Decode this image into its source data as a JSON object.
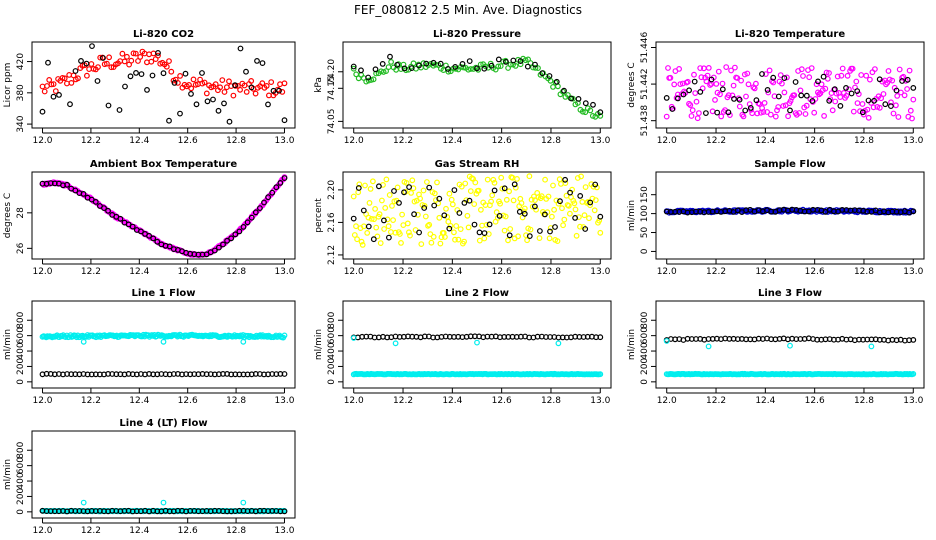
{
  "figure_title": "FEF_080812  2.5 Min. Ave. Diagnostics",
  "colors": {
    "black": "#000000",
    "red": "#ff0000",
    "green": "#22bb22",
    "magenta": "#ff00ff",
    "yellow": "#ffff00",
    "blue": "#0000cc",
    "cyan": "#00eeee"
  },
  "chart_data": [
    {
      "id": "co2",
      "type": "scatter",
      "title": "Li-820 CO2",
      "ylabel": "Licor ppm",
      "xlim": [
        12.0,
        13.0
      ],
      "ylim": [
        335,
        445
      ],
      "xticks": [
        "12.0",
        "12.2",
        "12.4",
        "12.6",
        "12.8",
        "13.0"
      ],
      "yticks": [
        340,
        380,
        420
      ],
      "series": [
        {
          "name": "line-a",
          "color": "red",
          "x": [
            12.0,
            12.05,
            12.1,
            12.15,
            12.2,
            12.25,
            12.3,
            12.35,
            12.4,
            12.45,
            12.5,
            12.55,
            12.6,
            12.7,
            12.8,
            12.9,
            13.0
          ],
          "y": [
            385,
            388,
            395,
            405,
            412,
            418,
            420,
            421,
            425,
            428,
            420,
            402,
            392,
            388,
            386,
            385,
            385
          ],
          "spread": 10,
          "n": 110
        },
        {
          "name": "line-b",
          "color": "black",
          "x": [
            12.0,
            12.25,
            12.5,
            12.75,
            13.0
          ],
          "y": [
            385,
            385,
            385,
            385,
            385
          ],
          "spread": 55,
          "n": 45
        }
      ]
    },
    {
      "id": "pressure",
      "type": "scatter",
      "title": "Li-820 Pressure",
      "ylabel": "kPa",
      "xlim": [
        12.0,
        13.0
      ],
      "ylim": [
        74.03,
        74.29
      ],
      "xticks": [
        "12.0",
        "12.2",
        "12.4",
        "12.6",
        "12.8",
        "13.0"
      ],
      "yticks": [
        "74.05",
        "74.15",
        "74.20"
      ],
      "series": [
        {
          "name": "line-a",
          "color": "green",
          "x": [
            12.0,
            12.05,
            12.1,
            12.15,
            12.2,
            12.3,
            12.4,
            12.5,
            12.6,
            12.7,
            12.8,
            12.9,
            13.0
          ],
          "y": [
            74.2,
            74.18,
            74.19,
            74.22,
            74.21,
            74.22,
            74.21,
            74.21,
            74.22,
            74.23,
            74.17,
            74.1,
            74.06
          ],
          "spread": 0.012,
          "n": 100
        },
        {
          "name": "line-b",
          "color": "black",
          "x": [
            12.0,
            12.05,
            12.1,
            12.15,
            12.2,
            12.3,
            12.4,
            12.5,
            12.6,
            12.7,
            12.8,
            12.9,
            13.0
          ],
          "y": [
            74.21,
            74.19,
            74.2,
            74.24,
            74.22,
            74.23,
            74.22,
            74.22,
            74.23,
            74.23,
            74.18,
            74.12,
            74.08
          ],
          "spread": 0.015,
          "n": 35
        }
      ]
    },
    {
      "id": "licor-temp",
      "type": "scatter",
      "title": "Li-820 Temperature",
      "ylabel": "degrees C",
      "xlim": [
        12.0,
        13.0
      ],
      "ylim": [
        51.4372,
        51.4466
      ],
      "xticks": [
        "12.0",
        "12.2",
        "12.4",
        "12.6",
        "12.8",
        "13.0"
      ],
      "yticks": [
        "51.438",
        "51.442",
        "51.446"
      ],
      "series": [
        {
          "name": "line-a",
          "color": "magenta",
          "x": [
            12.0,
            12.5,
            13.0
          ],
          "y": [
            51.441,
            51.4412,
            51.441
          ],
          "spread": 0.0028,
          "n": 200
        },
        {
          "name": "line-b",
          "color": "black",
          "x": [
            12.0,
            12.5,
            13.0
          ],
          "y": [
            51.441,
            51.441,
            51.441
          ],
          "spread": 0.0022,
          "n": 45
        }
      ]
    },
    {
      "id": "ambient",
      "type": "scatter",
      "title": "Ambient Box Temperature",
      "ylabel": "degrees C",
      "xlim": [
        12.0,
        13.0
      ],
      "ylim": [
        25.4,
        30.3
      ],
      "xticks": [
        "12.0",
        "12.2",
        "12.4",
        "12.6",
        "12.8",
        "13.0"
      ],
      "yticks": [
        26,
        28
      ],
      "series": [
        {
          "name": "line-a",
          "color": "magenta",
          "x": [
            12.0,
            12.05,
            12.1,
            12.2,
            12.3,
            12.4,
            12.5,
            12.6,
            12.65,
            12.7,
            12.8,
            12.9,
            13.0
          ],
          "y": [
            29.6,
            29.7,
            29.55,
            28.8,
            27.8,
            27.0,
            26.2,
            25.7,
            25.6,
            25.8,
            26.8,
            28.3,
            30.0
          ],
          "spread": 0.05,
          "n": 200
        },
        {
          "name": "line-b",
          "color": "black",
          "x": [
            12.0,
            12.05,
            12.1,
            12.2,
            12.3,
            12.4,
            12.5,
            12.6,
            12.65,
            12.7,
            12.8,
            12.9,
            13.0
          ],
          "y": [
            29.6,
            29.7,
            29.55,
            28.8,
            27.8,
            27.0,
            26.2,
            25.7,
            25.6,
            25.8,
            26.8,
            28.3,
            30.0
          ],
          "spread": 0.05,
          "n": 60
        }
      ]
    },
    {
      "id": "rh",
      "type": "scatter",
      "title": "Gas Stream RH",
      "ylabel": "percent",
      "xlim": [
        12.0,
        13.0
      ],
      "ylim": [
        2.115,
        2.222
      ],
      "xticks": [
        "12.0",
        "12.2",
        "12.4",
        "12.6",
        "12.8",
        "13.0"
      ],
      "yticks": [
        "2.12",
        "2.16",
        "2.20"
      ],
      "series": [
        {
          "name": "line-a",
          "color": "yellow",
          "x": [
            12.0,
            12.5,
            13.0
          ],
          "y": [
            2.172,
            2.175,
            2.18
          ],
          "spread": 0.042,
          "n": 220
        },
        {
          "name": "line-b",
          "color": "black",
          "x": [
            12.0,
            12.5,
            13.0
          ],
          "y": [
            2.174,
            2.175,
            2.182
          ],
          "spread": 0.035,
          "n": 50
        }
      ]
    },
    {
      "id": "sample",
      "type": "scatter",
      "title": "Sample Flow",
      "ylabel": "ml/min",
      "xlim": [
        12.0,
        13.0
      ],
      "ylim": [
        -20,
        210
      ],
      "xticks": [
        "12.0",
        "12.2",
        "12.4",
        "12.6",
        "12.8",
        "13.0"
      ],
      "yticks": [
        0,
        50,
        100,
        150
      ],
      "series": [
        {
          "name": "line-a",
          "color": "blue",
          "x": [
            12.0,
            12.5,
            13.0
          ],
          "y": [
            105,
            108,
            105
          ],
          "spread": 3,
          "n": 200
        },
        {
          "name": "line-b",
          "color": "black",
          "x": [
            12.0,
            12.5,
            13.0
          ],
          "y": [
            105,
            108,
            105
          ],
          "spread": 3,
          "n": 60
        }
      ]
    },
    {
      "id": "line1",
      "type": "scatter",
      "title": "Line 1 Flow",
      "ylabel": "ml/min",
      "xlim": [
        12.0,
        13.0
      ],
      "ylim": [
        -80,
        1050
      ],
      "xticks": [
        "12.0",
        "12.2",
        "12.4",
        "12.6",
        "12.8",
        "13.0"
      ],
      "yticks": [
        0,
        200,
        400,
        600,
        800
      ],
      "series": [
        {
          "name": "line-a",
          "color": "cyan",
          "x": [
            12.0,
            12.5,
            13.0
          ],
          "y": [
            590,
            600,
            590
          ],
          "spread": 15,
          "n": 200
        },
        {
          "name": "line-b",
          "color": "black",
          "x": [
            12.0,
            12.5,
            13.0
          ],
          "y": [
            100,
            100,
            100
          ],
          "spread": 4,
          "n": 60
        }
      ],
      "outliers": [
        {
          "color": "cyan",
          "x": [
            12.17,
            12.5,
            12.83
          ],
          "y": [
            520,
            520,
            520
          ]
        }
      ]
    },
    {
      "id": "line2",
      "type": "scatter",
      "title": "Line 2 Flow",
      "ylabel": "ml/min",
      "xlim": [
        12.0,
        13.0
      ],
      "ylim": [
        -80,
        1050
      ],
      "xticks": [
        "12.0",
        "12.2",
        "12.4",
        "12.6",
        "12.8",
        "13.0"
      ],
      "yticks": [
        0,
        200,
        400,
        600,
        800
      ],
      "series": [
        {
          "name": "line-a",
          "color": "cyan",
          "x": [
            12.0,
            12.5,
            13.0
          ],
          "y": [
            100,
            100,
            100
          ],
          "spread": 4,
          "n": 200
        },
        {
          "name": "line-b",
          "color": "black",
          "x": [
            12.0,
            12.5,
            13.0
          ],
          "y": [
            580,
            585,
            580
          ],
          "spread": 8,
          "n": 60
        }
      ],
      "outliers": [
        {
          "color": "cyan",
          "x": [
            12.0,
            12.17,
            12.5,
            12.83
          ],
          "y": [
            570,
            500,
            510,
            500
          ]
        }
      ]
    },
    {
      "id": "line3",
      "type": "scatter",
      "title": "Line 3 Flow",
      "ylabel": "ml/min",
      "xlim": [
        12.0,
        13.0
      ],
      "ylim": [
        -80,
        1050
      ],
      "xticks": [
        "12.0",
        "12.2",
        "12.4",
        "12.6",
        "12.8",
        "13.0"
      ],
      "yticks": [
        0,
        200,
        400,
        600,
        800
      ],
      "series": [
        {
          "name": "line-a",
          "color": "cyan",
          "x": [
            12.0,
            12.5,
            13.0
          ],
          "y": [
            100,
            100,
            100
          ],
          "spread": 4,
          "n": 200
        },
        {
          "name": "line-b",
          "color": "black",
          "x": [
            12.0,
            12.5,
            13.0
          ],
          "y": [
            550,
            560,
            540
          ],
          "spread": 8,
          "n": 60
        }
      ],
      "outliers": [
        {
          "color": "cyan",
          "x": [
            12.0,
            12.17,
            12.5,
            12.83
          ],
          "y": [
            530,
            460,
            470,
            460
          ]
        }
      ]
    },
    {
      "id": "line4",
      "type": "scatter",
      "title": "Line 4 (LT) Flow",
      "ylabel": "ml/min",
      "xlim": [
        12.0,
        13.0
      ],
      "ylim": [
        -80,
        1050
      ],
      "xticks": [
        "12.0",
        "12.2",
        "12.4",
        "12.6",
        "12.8",
        "13.0"
      ],
      "yticks": [
        0,
        200,
        400,
        600,
        800
      ],
      "series": [
        {
          "name": "line-a",
          "color": "cyan",
          "x": [
            12.0,
            12.5,
            13.0
          ],
          "y": [
            10,
            10,
            10
          ],
          "spread": 4,
          "n": 200
        },
        {
          "name": "line-b",
          "color": "black",
          "x": [
            12.0,
            12.5,
            13.0
          ],
          "y": [
            10,
            10,
            10
          ],
          "spread": 4,
          "n": 60
        }
      ],
      "outliers": [
        {
          "color": "cyan",
          "x": [
            12.17,
            12.5,
            12.83
          ],
          "y": [
            120,
            120,
            120
          ]
        }
      ]
    }
  ]
}
